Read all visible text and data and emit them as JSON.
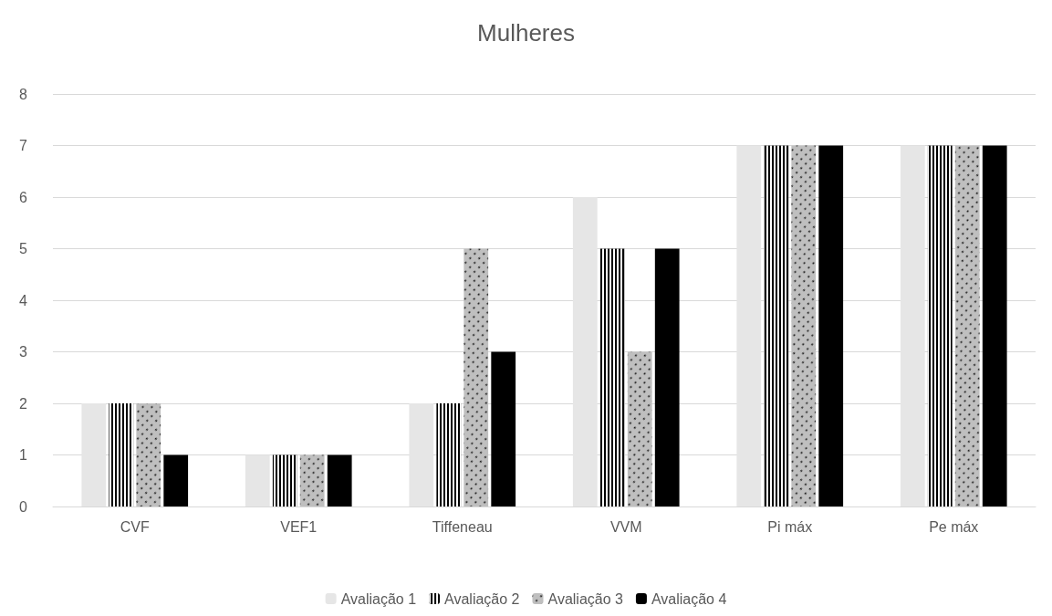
{
  "chart_data": {
    "type": "bar",
    "title": "Mulheres",
    "categories": [
      "CVF",
      "VEF1",
      "Tiffeneau",
      "VVM",
      "Pi máx",
      "Pe máx"
    ],
    "series": [
      {
        "name": "Avaliação 1",
        "color": "#e6e6e6",
        "values": [
          2,
          1,
          2,
          6,
          7,
          7
        ]
      },
      {
        "name": "Avaliação 2",
        "color": "#000000",
        "values": [
          2,
          1,
          2,
          5,
          7,
          7
        ]
      },
      {
        "name": "Avaliação 3",
        "color": "#bfbfbf",
        "values": [
          2,
          1,
          5,
          3,
          7,
          7
        ]
      },
      {
        "name": "Avaliação 4",
        "color": "#000000",
        "values": [
          1,
          1,
          3,
          5,
          7,
          7
        ]
      }
    ],
    "ylim": [
      0,
      8
    ],
    "yticks": [
      0,
      1,
      2,
      3,
      4,
      5,
      6,
      7,
      8
    ],
    "grid": "y",
    "legend": "bottom"
  }
}
